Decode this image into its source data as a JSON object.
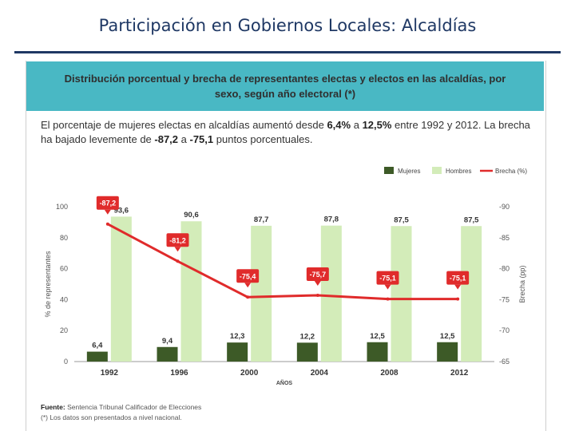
{
  "slide": {
    "title": "Participación en Gobiernos Locales: Alcaldías"
  },
  "panel": {
    "header_line1": "Distribución porcentual y brecha de representantes electas y electos en las alcaldías, por",
    "header_line2": "sexo, según año electoral (*)",
    "summary": {
      "t1": "El porcentaje de mujeres electas en alcaldías aumentó desde ",
      "v1": "6,4%",
      "t2": " a ",
      "v2": "12,5%",
      "t3": " entre 1992 y 2012. La brecha ha bajado levemente de ",
      "v3": "-87,2",
      "t4": " a ",
      "v4": "-75,1",
      "t5": " puntos porcentuales."
    },
    "footer": {
      "source_label": "Fuente:",
      "source_text": " Sentencia Tribunal Calificador de Elecciones",
      "note": "(*) Los datos son presentados a nivel nacional."
    }
  },
  "chart_data": {
    "type": "bar",
    "categories": [
      "1992",
      "1996",
      "2000",
      "2004",
      "2008",
      "2012"
    ],
    "series": [
      {
        "name": "Mujeres",
        "values": [
          6.4,
          9.4,
          12.3,
          12.2,
          12.5,
          12.5
        ],
        "labels": [
          "6,4",
          "9,4",
          "12,3",
          "12,2",
          "12,5",
          "12,5"
        ],
        "color": "#3d5a27"
      },
      {
        "name": "Hombres",
        "values": [
          93.6,
          90.6,
          87.7,
          87.8,
          87.5,
          87.5
        ],
        "labels": [
          "93,6",
          "90,6",
          "87,7",
          "87,8",
          "87,5",
          "87,5"
        ],
        "color": "#d3ecb9"
      },
      {
        "name": "Brecha (%)",
        "type": "line",
        "axis": "right",
        "values": [
          -87.2,
          -81.2,
          -75.4,
          -75.7,
          -75.1,
          -75.1
        ],
        "labels": [
          "-87,2",
          "-81,2",
          "-75,4",
          "-75,7",
          "-75,1",
          "-75,1"
        ],
        "color": "#e02b2b"
      }
    ],
    "legend": [
      "Mujeres",
      "Hombres",
      "Brecha (%)"
    ],
    "ylabel": "% de representantes",
    "y2label": "Brecha (pp)",
    "xlabel": "AÑOS",
    "ylim": [
      0,
      100
    ],
    "yticks": [
      "0",
      "20",
      "40",
      "60",
      "80",
      "100"
    ],
    "y2lim": [
      -65,
      -90
    ],
    "y2ticks": [
      "-65",
      "-70",
      "-75",
      "-80",
      "-85",
      "-90"
    ]
  }
}
